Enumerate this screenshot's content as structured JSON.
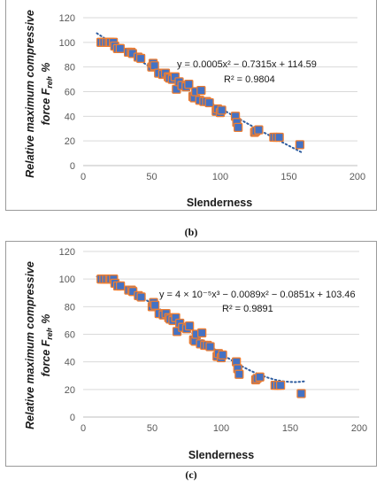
{
  "chart_data": [
    {
      "panel_label": "(b)",
      "type": "scatter",
      "xlabel": "Slenderness",
      "ylabel_line1": "Relative maximum compressive",
      "ylabel_line2": "force F",
      "ylabel_sub": "rel",
      "ylabel_unit": ", %",
      "xlim": [
        0,
        200
      ],
      "ylim": [
        0,
        120
      ],
      "x_ticks": [
        0,
        50,
        100,
        150,
        200
      ],
      "y_ticks": [
        0,
        20,
        40,
        60,
        80,
        100,
        120
      ],
      "grid": "horizontal",
      "trendline": {
        "kind": "polynomial-2",
        "coefficients": [
          0.0005,
          -0.7315,
          114.59
        ],
        "style": "dotted"
      },
      "equation": "y = 0.0005x² − 0.7315x + 114.59",
      "r_squared": "R² = 0.9804",
      "marker_color": "#4472c4",
      "marker_edge": "#ed7d31",
      "trend_color": "#2e5c9e",
      "points": [
        [
          13,
          100
        ],
        [
          15,
          100
        ],
        [
          17,
          100
        ],
        [
          19,
          100
        ],
        [
          20,
          100
        ],
        [
          22,
          100
        ],
        [
          23,
          97
        ],
        [
          25,
          95
        ],
        [
          27,
          95
        ],
        [
          33,
          92
        ],
        [
          35,
          92
        ],
        [
          36,
          91
        ],
        [
          40,
          88
        ],
        [
          42,
          87
        ],
        [
          50,
          80
        ],
        [
          51,
          83
        ],
        [
          52,
          81
        ],
        [
          55,
          75
        ],
        [
          58,
          74
        ],
        [
          60,
          75
        ],
        [
          62,
          72
        ],
        [
          63,
          71
        ],
        [
          65,
          70
        ],
        [
          67,
          72
        ],
        [
          68,
          62
        ],
        [
          70,
          68
        ],
        [
          72,
          65
        ],
        [
          75,
          64
        ],
        [
          77,
          66
        ],
        [
          80,
          56
        ],
        [
          81,
          55
        ],
        [
          82,
          60
        ],
        [
          85,
          53
        ],
        [
          86,
          61
        ],
        [
          88,
          52
        ],
        [
          90,
          52
        ],
        [
          92,
          51
        ],
        [
          97,
          44
        ],
        [
          98,
          46
        ],
        [
          100,
          43
        ],
        [
          101,
          45
        ],
        [
          111,
          40
        ],
        [
          112,
          35
        ],
        [
          113,
          31
        ],
        [
          125,
          27
        ],
        [
          126,
          28
        ],
        [
          128,
          29
        ],
        [
          139,
          23
        ],
        [
          141,
          23
        ],
        [
          143,
          23
        ],
        [
          158,
          17
        ]
      ]
    },
    {
      "panel_label": "(c)",
      "type": "scatter",
      "xlabel": "Slenderness",
      "ylabel_line1": "Relative maximum compressive",
      "ylabel_line2": "force F",
      "ylabel_sub": "rel",
      "ylabel_unit": ", %",
      "xlim": [
        0,
        200
      ],
      "ylim": [
        0,
        120
      ],
      "x_ticks": [
        0,
        50,
        100,
        150,
        200
      ],
      "y_ticks": [
        0,
        20,
        40,
        60,
        80,
        100,
        120
      ],
      "grid": "horizontal",
      "trendline": {
        "kind": "polynomial-3",
        "coefficients": [
          4e-05,
          -0.0089,
          -0.0851,
          103.46
        ],
        "style": "dotted"
      },
      "equation": "y = 4 × 10⁻⁵x³ − 0.0089x² − 0.0851x + 103.46",
      "r_squared": "R² = 0.9891",
      "marker_color": "#4472c4",
      "marker_edge": "#ed7d31",
      "trend_color": "#2e5c9e",
      "points": [
        [
          13,
          100
        ],
        [
          15,
          100
        ],
        [
          17,
          100
        ],
        [
          19,
          100
        ],
        [
          20,
          100
        ],
        [
          22,
          100
        ],
        [
          23,
          97
        ],
        [
          25,
          95
        ],
        [
          27,
          95
        ],
        [
          33,
          92
        ],
        [
          35,
          92
        ],
        [
          36,
          91
        ],
        [
          40,
          88
        ],
        [
          42,
          87
        ],
        [
          50,
          80
        ],
        [
          51,
          83
        ],
        [
          52,
          81
        ],
        [
          55,
          75
        ],
        [
          58,
          74
        ],
        [
          60,
          75
        ],
        [
          62,
          72
        ],
        [
          63,
          71
        ],
        [
          65,
          70
        ],
        [
          67,
          72
        ],
        [
          68,
          62
        ],
        [
          70,
          68
        ],
        [
          72,
          65
        ],
        [
          75,
          64
        ],
        [
          77,
          66
        ],
        [
          80,
          56
        ],
        [
          81,
          55
        ],
        [
          82,
          60
        ],
        [
          85,
          53
        ],
        [
          86,
          61
        ],
        [
          88,
          52
        ],
        [
          90,
          52
        ],
        [
          92,
          51
        ],
        [
          97,
          44
        ],
        [
          98,
          46
        ],
        [
          100,
          43
        ],
        [
          101,
          45
        ],
        [
          111,
          40
        ],
        [
          112,
          35
        ],
        [
          113,
          31
        ],
        [
          125,
          27
        ],
        [
          126,
          28
        ],
        [
          128,
          29
        ],
        [
          139,
          23
        ],
        [
          141,
          23
        ],
        [
          143,
          23
        ],
        [
          158,
          17
        ]
      ]
    }
  ]
}
